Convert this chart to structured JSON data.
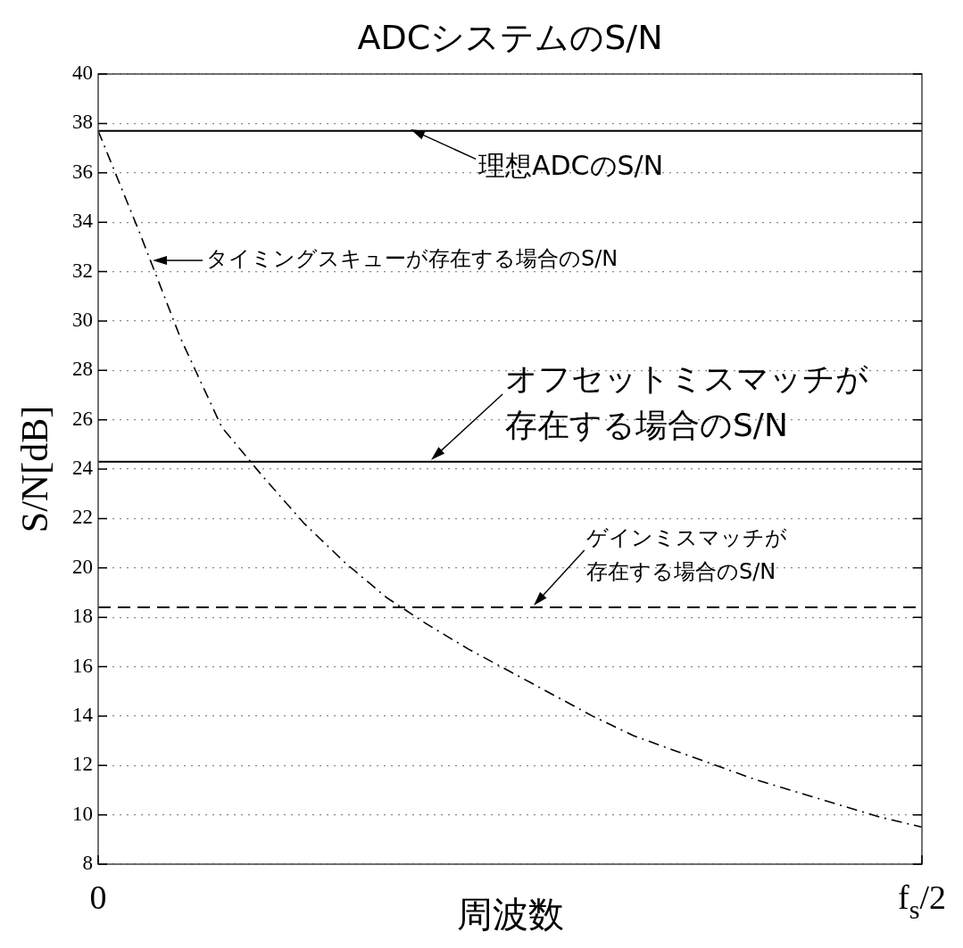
{
  "chart_data": {
    "type": "line",
    "title": "ADCシステムのS/N",
    "xlabel": "周波数",
    "ylabel": "S/N[dB]",
    "categories": [
      "0",
      null,
      null,
      null,
      null,
      null,
      null,
      null,
      null,
      null,
      null,
      null,
      null,
      null,
      null,
      null,
      null,
      null,
      null,
      null,
      "f$_{s}$/2"
    ],
    "ylim": [
      8,
      40
    ],
    "yticks": [
      8,
      10,
      12,
      14,
      16,
      18,
      20,
      22,
      24,
      26,
      28,
      30,
      32,
      34,
      36,
      38,
      40
    ],
    "grid": "y",
    "marker": "none",
    "series": [
      {
        "color": "#000000",
        "line_style": "dashed",
        "values": [
          37.7,
          33.6,
          29.3,
          25.7,
          23.7,
          21.8,
          20.2,
          18.8,
          17.7,
          16.7,
          15.8,
          14.9,
          14.0,
          13.2,
          12.6,
          12.0,
          11.4,
          10.9,
          10.4,
          9.9,
          9.5
        ]
      }
    ],
    "annotations": [
      "タイミングスキューが存在する場合のS/N"
    ],
    "ref_lines": [
      {
        "axis": "y",
        "value": 37.7,
        "label": "理想ADCのS/N",
        "line_style": "solid",
        "color": "#000000"
      },
      {
        "axis": "y",
        "value": 24.3,
        "label": "オフセットミスマッチが存在する場合のS/N",
        "line_style": "solid",
        "color": "#000000"
      },
      {
        "axis": "y",
        "value": 18.4,
        "label": "ゲインミスマッチが存在する場合のS/N",
        "line_style": "dashed",
        "color": "#000000"
      }
    ]
  }
}
